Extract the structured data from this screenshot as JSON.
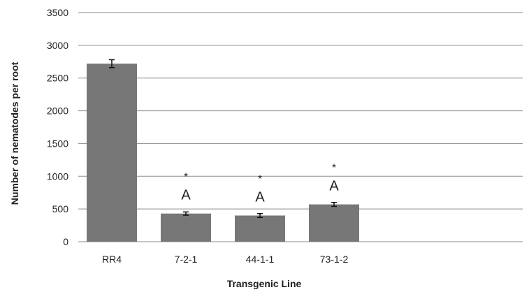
{
  "chart_data": {
    "type": "bar",
    "title": "",
    "xlabel": "Transgenic Line",
    "ylabel": "Number of nematodes per root",
    "ylim": [
      0,
      3500
    ],
    "ytick_step": 500,
    "yticks": [
      "0",
      "500",
      "1000",
      "1500",
      "2000",
      "2500",
      "3000",
      "3500"
    ],
    "grid": true,
    "legend": "none",
    "categories": [
      "RR4",
      "7-2-1",
      "44-1-1",
      "73-1-2"
    ],
    "values": [
      2720,
      430,
      400,
      570
    ],
    "errors": [
      60,
      25,
      30,
      30
    ],
    "significance": [
      "",
      "*",
      "*",
      "*"
    ],
    "group_letters": [
      "",
      "A",
      "A",
      "A"
    ],
    "bar_color": "#777777",
    "grid_color": "#8c8c8c"
  }
}
